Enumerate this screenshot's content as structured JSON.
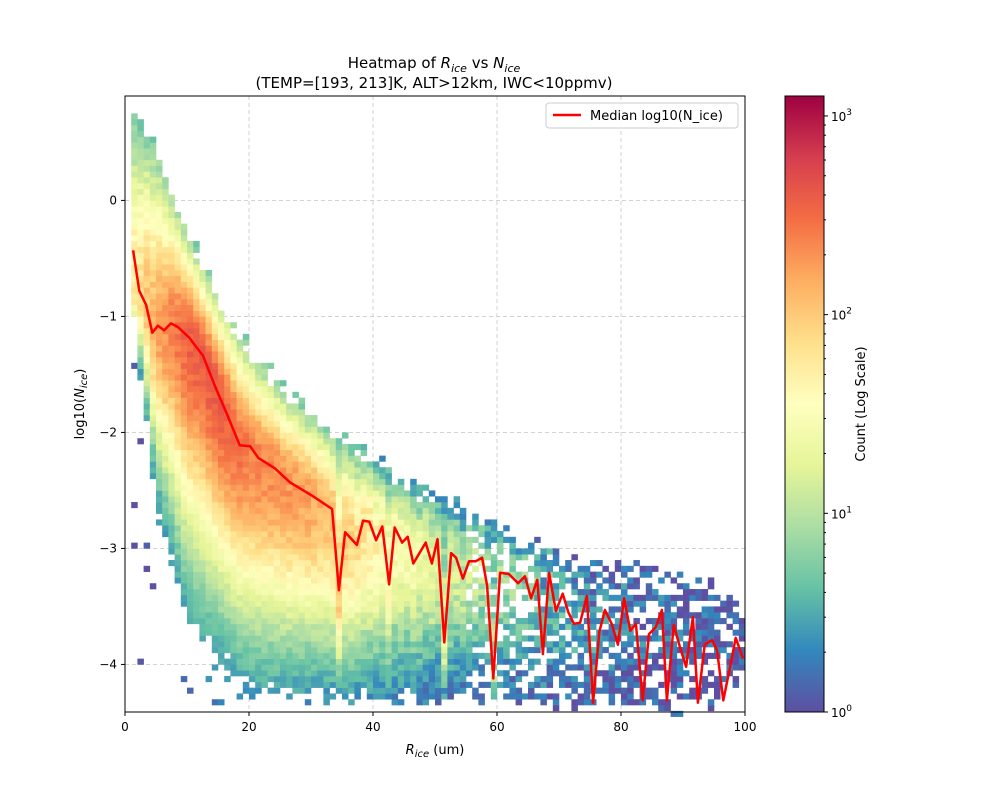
{
  "chart_data": {
    "type": "heatmap",
    "title": {
      "prefix": "Heatmap of ",
      "var1": "R",
      "sub1": "ice",
      "mid": " vs ",
      "var2": "N",
      "sub2": "ice",
      "line2": "(TEMP=[193, 213]K, ALT>12km, IWC<10ppmv)"
    },
    "xlabel": {
      "var": "R",
      "sub": "ice",
      "unit": " (um)"
    },
    "ylabel": {
      "prefix": "log10(",
      "var": "N",
      "sub": "ice",
      "suffix": ")"
    },
    "xlim": [
      0,
      100
    ],
    "ylim": [
      -4.41,
      0.9
    ],
    "xticks": [
      0,
      20,
      40,
      60,
      80,
      100
    ],
    "xtick_labels": [
      "0",
      "20",
      "40",
      "60",
      "80",
      "100"
    ],
    "yticks": [
      0,
      -1,
      -2,
      -3,
      -4
    ],
    "ytick_labels": [
      "0",
      "−1",
      "−2",
      "−3",
      "−4"
    ],
    "grid": true,
    "bin_width_x": 1,
    "bin_width_y": 0.05,
    "density_envelope": {
      "x": [
        0,
        5,
        10,
        15,
        20,
        25,
        30,
        35,
        40,
        45,
        50,
        55,
        60,
        65,
        70,
        75,
        80,
        85,
        90,
        95,
        100
      ],
      "upper_y": [
        0.9,
        0.45,
        -0.3,
        -0.85,
        -1.3,
        -1.6,
        -1.85,
        -2.05,
        -2.25,
        -2.45,
        -2.55,
        -2.7,
        -2.8,
        -2.95,
        -3.05,
        -3.1,
        -3.15,
        -3.2,
        -3.25,
        -3.35,
        -3.5
      ],
      "lower_y": [
        -0.4,
        -2.6,
        -3.6,
        -3.9,
        -4.2,
        -4.25,
        -4.25,
        -4.3,
        -4.3,
        -4.3,
        -4.3,
        -4.3,
        -4.3,
        -4.3,
        -4.35,
        -4.35,
        -4.35,
        -4.35,
        -4.35,
        -4.35,
        -4.1
      ],
      "peak_log10_count": [
        1.6,
        2.2,
        2.55,
        2.6,
        2.4,
        2.3,
        2.2,
        2.0,
        1.75,
        1.5,
        1.3,
        1.1,
        0.95,
        0.75,
        0.55,
        0.4,
        0.3,
        0.25,
        0.2,
        0.15,
        0.1
      ]
    },
    "colorbar": {
      "label": "Count (Log Scale)",
      "scale": "log",
      "range": [
        1,
        1260
      ],
      "colormap": "Spectral_r",
      "colors": [
        "#5e4fa2",
        "#3288bd",
        "#66c2a5",
        "#abdda4",
        "#e6f598",
        "#ffffbf",
        "#fee08b",
        "#fdae61",
        "#f46d43",
        "#d53e4f",
        "#9e0142"
      ],
      "ticks": [
        {
          "base": "10",
          "exp": "0"
        },
        {
          "base": "10",
          "exp": "1"
        },
        {
          "base": "10",
          "exp": "2"
        },
        {
          "base": "10",
          "exp": "3"
        }
      ]
    },
    "legend": {
      "placement": "top-right",
      "entries": [
        {
          "label": "Median log10(N_ice)",
          "color": "#ff0000"
        }
      ]
    },
    "median_line": {
      "name": "Median log10(N_ice)",
      "color": "#ff0000",
      "x": [
        1.3,
        2.3,
        3.4,
        4.4,
        5.3,
        6.3,
        7.4,
        8.5,
        10.3,
        12.6,
        14.5,
        16.5,
        18.5,
        20.2,
        21.5,
        24.2,
        26.6,
        30.3,
        33.4,
        34.5,
        35.5,
        37.4,
        38.4,
        39.4,
        40.5,
        41.5,
        42.6,
        43.5,
        44.7,
        45.6,
        46.5,
        48.5,
        49.5,
        50.4,
        51.5,
        52.6,
        53.4,
        54.5,
        55.5,
        56.6,
        57.6,
        58.4,
        59.4,
        60.5,
        61.9,
        63.4,
        64.5,
        65.5,
        66.5,
        67.4,
        68.4,
        69.5,
        70.6,
        71.5,
        72.4,
        73.4,
        74.5,
        75.5,
        76.5,
        77.4,
        78.5,
        79.5,
        80.5,
        81.5,
        82.4,
        83.5,
        84.5,
        85.6,
        86.6,
        87.4,
        88.5,
        89.5,
        90.5,
        91.6,
        92.4,
        93.5,
        94.7,
        95.5,
        96.5,
        97.6,
        98.5,
        99.7
      ],
      "y": [
        -0.43,
        -0.78,
        -0.9,
        -1.14,
        -1.08,
        -1.12,
        -1.06,
        -1.09,
        -1.18,
        -1.34,
        -1.6,
        -1.85,
        -2.11,
        -2.12,
        -2.22,
        -2.31,
        -2.43,
        -2.55,
        -2.66,
        -3.36,
        -2.86,
        -2.97,
        -2.76,
        -2.77,
        -2.93,
        -2.81,
        -3.31,
        -2.82,
        -2.95,
        -2.9,
        -3.13,
        -2.95,
        -3.13,
        -2.92,
        -3.81,
        -3.04,
        -3.08,
        -3.26,
        -3.11,
        -3.11,
        -3.08,
        -3.32,
        -4.12,
        -3.21,
        -3.22,
        -3.3,
        -3.24,
        -3.43,
        -3.27,
        -3.91,
        -3.21,
        -3.54,
        -3.39,
        -3.55,
        -3.65,
        -3.64,
        -3.41,
        -4.33,
        -3.72,
        -3.53,
        -3.65,
        -3.83,
        -3.43,
        -3.71,
        -3.65,
        -4.31,
        -3.74,
        -3.68,
        -3.53,
        -4.31,
        -3.66,
        -3.85,
        -4.02,
        -3.59,
        -4.33,
        -3.83,
        -3.79,
        -3.88,
        -4.31,
        -4.02,
        -3.77,
        -3.95
      ]
    }
  }
}
